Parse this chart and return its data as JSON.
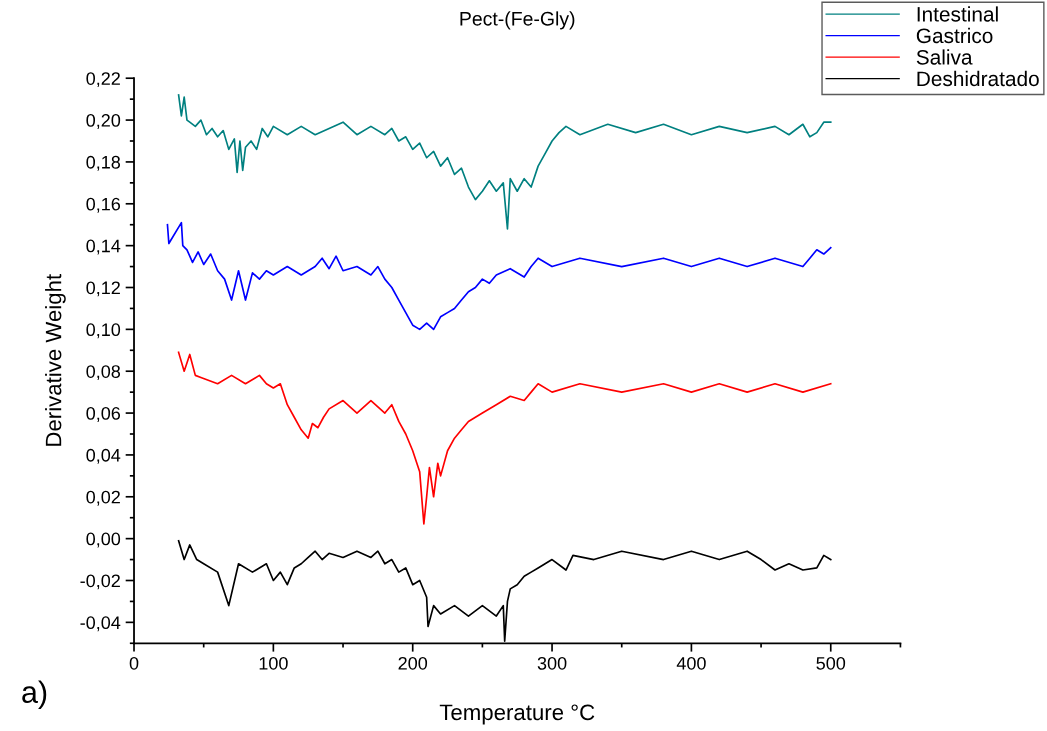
{
  "chart_data": {
    "type": "line",
    "title": "Pect-(Fe-Gly)",
    "xlabel": "Temperature °C",
    "ylabel": "Derivative Weight",
    "annotations": [
      "a)"
    ],
    "xlim": [
      0,
      550
    ],
    "xticks": [
      0,
      100,
      200,
      300,
      400,
      500
    ],
    "ylim": [
      -0.05,
      0.22
    ],
    "yticks": [
      {
        "value": -0.04,
        "label": "-0,04"
      },
      {
        "value": -0.02,
        "label": "-0,02"
      },
      {
        "value": 0,
        "label": "0,00"
      },
      {
        "value": 0.02,
        "label": "0,02"
      },
      {
        "value": 0.04,
        "label": "0,04"
      },
      {
        "value": 0.06,
        "label": "0,06"
      },
      {
        "value": 0.08,
        "label": "0,08"
      },
      {
        "value": 0.1,
        "label": "0,10"
      },
      {
        "value": 0.12,
        "label": "0,12"
      },
      {
        "value": 0.14,
        "label": "0,14"
      },
      {
        "value": 0.16,
        "label": "0,16"
      },
      {
        "value": 0.18,
        "label": "0,18"
      },
      {
        "value": 0.2,
        "label": "0,20"
      },
      {
        "value": 0.22,
        "label": "0,22"
      }
    ],
    "grid": false,
    "legend": "top right",
    "marker": "none",
    "line_style": "solid",
    "series": [
      {
        "name": "Intestinal",
        "color": "#008080",
        "x": [
          32,
          34,
          36,
          38,
          40,
          44,
          48,
          52,
          56,
          60,
          64,
          68,
          72,
          74,
          76,
          78,
          80,
          84,
          88,
          92,
          96,
          100,
          110,
          120,
          130,
          140,
          150,
          160,
          170,
          180,
          185,
          190,
          195,
          200,
          205,
          210,
          215,
          220,
          225,
          230,
          235,
          240,
          245,
          250,
          255,
          260,
          265,
          268,
          270,
          275,
          280,
          285,
          290,
          295,
          300,
          305,
          310,
          320,
          340,
          360,
          380,
          400,
          420,
          440,
          460,
          470,
          480,
          485,
          490,
          495,
          500
        ],
        "values": [
          0.212,
          0.202,
          0.211,
          0.2,
          0.199,
          0.197,
          0.2,
          0.193,
          0.196,
          0.192,
          0.195,
          0.186,
          0.191,
          0.175,
          0.19,
          0.176,
          0.187,
          0.19,
          0.186,
          0.196,
          0.192,
          0.197,
          0.193,
          0.197,
          0.193,
          0.196,
          0.199,
          0.193,
          0.197,
          0.193,
          0.196,
          0.19,
          0.192,
          0.186,
          0.189,
          0.182,
          0.185,
          0.178,
          0.182,
          0.174,
          0.177,
          0.168,
          0.162,
          0.166,
          0.171,
          0.166,
          0.17,
          0.148,
          0.172,
          0.166,
          0.172,
          0.168,
          0.178,
          0.184,
          0.19,
          0.194,
          0.197,
          0.193,
          0.198,
          0.194,
          0.198,
          0.193,
          0.197,
          0.194,
          0.197,
          0.193,
          0.198,
          0.192,
          0.194,
          0.199,
          0.199
        ]
      },
      {
        "name": "Gastrico",
        "color": "#0000ff",
        "x": [
          24,
          25,
          34,
          35,
          38,
          42,
          46,
          50,
          55,
          60,
          65,
          70,
          75,
          80,
          85,
          90,
          95,
          100,
          110,
          120,
          130,
          135,
          140,
          145,
          150,
          160,
          170,
          175,
          180,
          185,
          190,
          195,
          200,
          205,
          210,
          215,
          220,
          225,
          230,
          235,
          240,
          245,
          250,
          255,
          260,
          270,
          280,
          285,
          290,
          300,
          320,
          350,
          380,
          400,
          420,
          440,
          460,
          480,
          485,
          490,
          495,
          500
        ],
        "values": [
          0.15,
          0.141,
          0.151,
          0.14,
          0.138,
          0.132,
          0.137,
          0.131,
          0.136,
          0.128,
          0.124,
          0.114,
          0.128,
          0.114,
          0.127,
          0.124,
          0.128,
          0.126,
          0.13,
          0.126,
          0.13,
          0.134,
          0.129,
          0.135,
          0.128,
          0.13,
          0.126,
          0.13,
          0.124,
          0.12,
          0.114,
          0.108,
          0.102,
          0.1,
          0.103,
          0.1,
          0.106,
          0.108,
          0.11,
          0.114,
          0.118,
          0.12,
          0.124,
          0.122,
          0.126,
          0.129,
          0.125,
          0.13,
          0.134,
          0.13,
          0.134,
          0.13,
          0.134,
          0.13,
          0.134,
          0.13,
          0.134,
          0.13,
          0.134,
          0.138,
          0.136,
          0.139
        ]
      },
      {
        "name": "Saliva",
        "color": "#ff0000",
        "x": [
          32,
          36,
          40,
          44,
          48,
          60,
          70,
          80,
          90,
          95,
          100,
          105,
          110,
          115,
          120,
          125,
          128,
          132,
          136,
          140,
          150,
          160,
          170,
          180,
          185,
          190,
          195,
          200,
          205,
          208,
          210,
          212,
          215,
          218,
          220,
          225,
          230,
          235,
          240,
          245,
          250,
          260,
          270,
          280,
          285,
          290,
          300,
          320,
          350,
          380,
          400,
          420,
          440,
          460,
          480,
          500
        ],
        "values": [
          0.089,
          0.08,
          0.088,
          0.078,
          0.077,
          0.074,
          0.078,
          0.074,
          0.078,
          0.074,
          0.072,
          0.074,
          0.064,
          0.058,
          0.052,
          0.048,
          0.055,
          0.053,
          0.058,
          0.062,
          0.066,
          0.06,
          0.066,
          0.06,
          0.064,
          0.056,
          0.05,
          0.042,
          0.032,
          0.007,
          0.02,
          0.034,
          0.02,
          0.036,
          0.03,
          0.042,
          0.048,
          0.052,
          0.056,
          0.058,
          0.06,
          0.064,
          0.068,
          0.066,
          0.07,
          0.074,
          0.07,
          0.074,
          0.07,
          0.074,
          0.07,
          0.074,
          0.07,
          0.074,
          0.07,
          0.074
        ]
      },
      {
        "name": "Deshidratado",
        "color": "#000000",
        "x": [
          32,
          36,
          40,
          45,
          50,
          60,
          68,
          75,
          85,
          95,
          100,
          105,
          110,
          115,
          120,
          125,
          130,
          135,
          140,
          150,
          160,
          170,
          175,
          180,
          185,
          190,
          195,
          200,
          205,
          210,
          211,
          215,
          220,
          230,
          240,
          250,
          260,
          265,
          266,
          268,
          270,
          275,
          280,
          285,
          290,
          300,
          310,
          315,
          330,
          350,
          380,
          400,
          420,
          440,
          450,
          460,
          470,
          480,
          490,
          495,
          500
        ],
        "values": [
          -0.001,
          -0.01,
          -0.003,
          -0.01,
          -0.012,
          -0.016,
          -0.032,
          -0.012,
          -0.016,
          -0.012,
          -0.02,
          -0.016,
          -0.022,
          -0.014,
          -0.012,
          -0.009,
          -0.006,
          -0.01,
          -0.007,
          -0.009,
          -0.006,
          -0.009,
          -0.006,
          -0.012,
          -0.01,
          -0.016,
          -0.014,
          -0.022,
          -0.02,
          -0.028,
          -0.042,
          -0.032,
          -0.036,
          -0.032,
          -0.037,
          -0.032,
          -0.037,
          -0.032,
          -0.049,
          -0.03,
          -0.024,
          -0.022,
          -0.018,
          -0.016,
          -0.014,
          -0.01,
          -0.015,
          -0.008,
          -0.01,
          -0.006,
          -0.01,
          -0.006,
          -0.01,
          -0.006,
          -0.01,
          -0.015,
          -0.012,
          -0.015,
          -0.014,
          -0.008,
          -0.01
        ]
      }
    ]
  }
}
